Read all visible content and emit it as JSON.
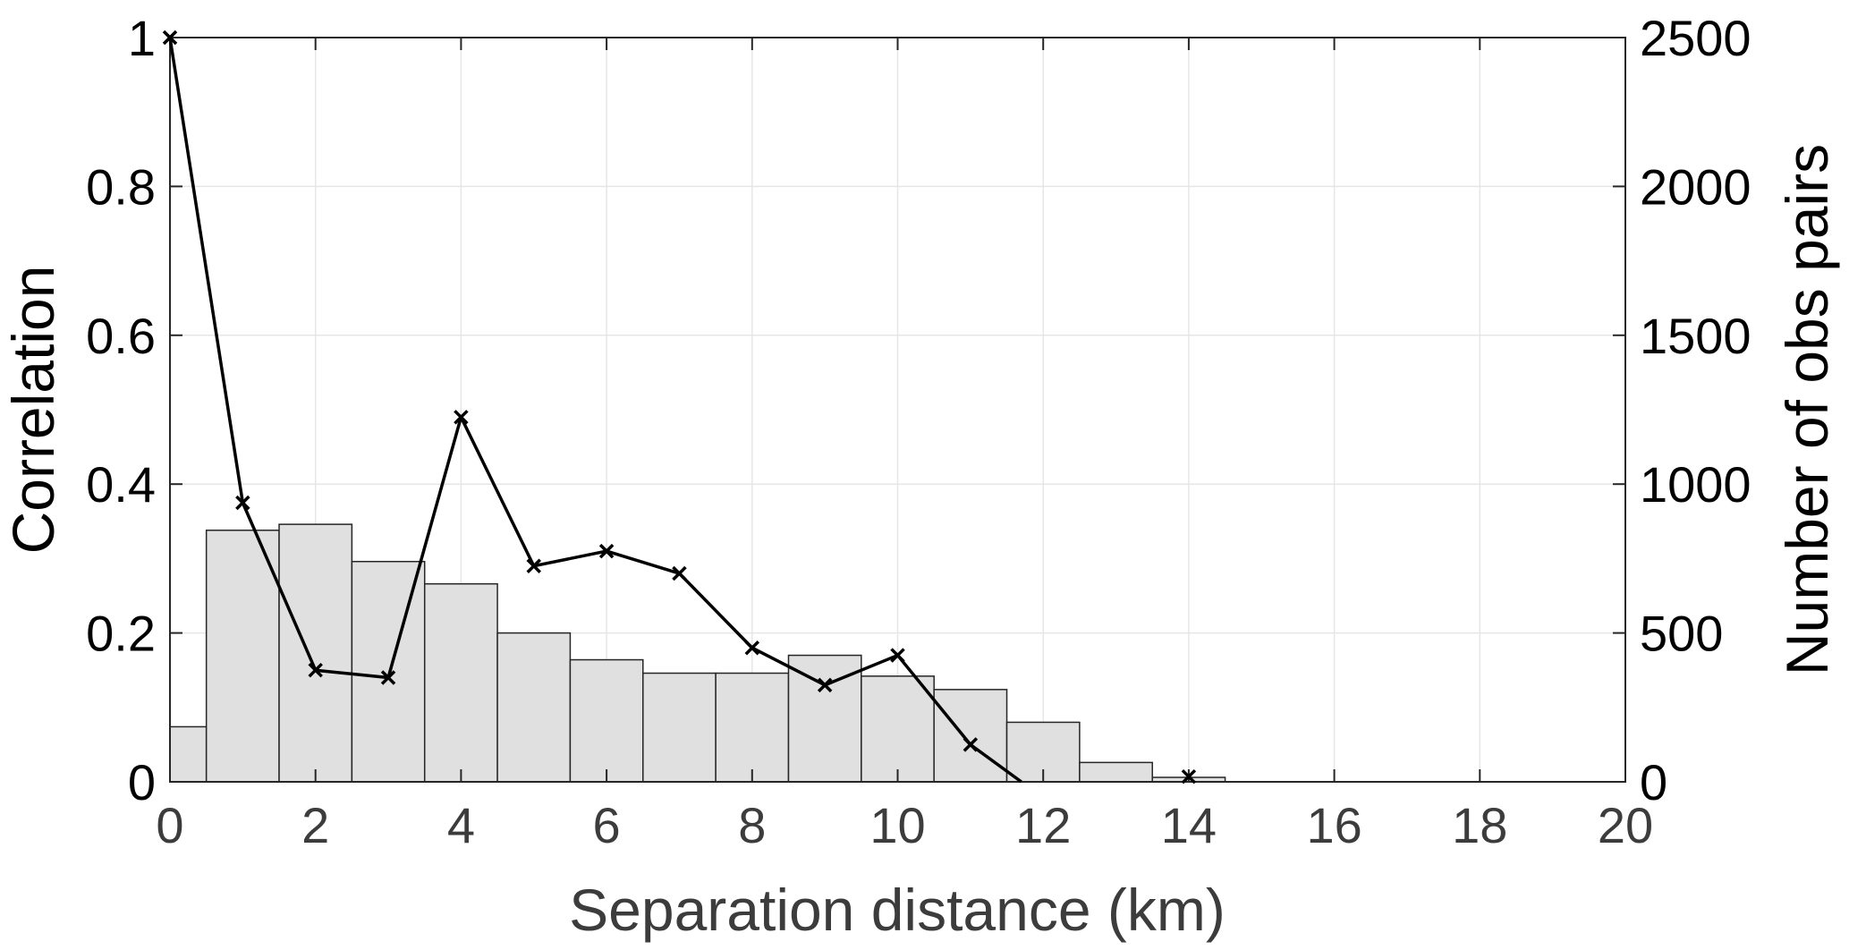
{
  "chart_data": {
    "type": "bar+line",
    "xlabel": "Separation distance (km)",
    "ylabel_left": "Correlation",
    "ylabel_right": "Number of obs pairs",
    "xlim": [
      0,
      20
    ],
    "ylim_left": [
      0,
      1
    ],
    "ylim_right": [
      0,
      2500
    ],
    "x_ticks": [
      0,
      2,
      4,
      6,
      8,
      10,
      12,
      14,
      16,
      18,
      20
    ],
    "y_ticks_left": [
      0,
      0.2,
      0.4,
      0.6,
      0.8,
      1
    ],
    "y_ticks_right": [
      0,
      500,
      1000,
      1500,
      2000,
      2500
    ],
    "grid": true,
    "histogram": {
      "axis": "right",
      "bin_edges": [
        0,
        0.5,
        1.5,
        2.5,
        3.5,
        4.5,
        5.5,
        6.5,
        7.5,
        8.5,
        9.5,
        10.5,
        11.5,
        12.5,
        13.5,
        14.5
      ],
      "counts": [
        185,
        845,
        865,
        740,
        665,
        500,
        410,
        365,
        365,
        425,
        355,
        310,
        200,
        65,
        15
      ]
    },
    "series": [
      {
        "axis": "left",
        "marker": "x",
        "x": [
          0,
          1,
          2,
          3,
          4,
          5,
          6,
          7,
          8,
          9,
          10,
          11,
          11.7
        ],
        "y": [
          1.0,
          0.375,
          0.15,
          0.14,
          0.49,
          0.29,
          0.31,
          0.28,
          0.18,
          0.13,
          0.17,
          0.05,
          0.0
        ],
        "marker_x": [
          0,
          1,
          2,
          3,
          4,
          5,
          6,
          7,
          8,
          9,
          10,
          11,
          14
        ],
        "marker_y": [
          1.0,
          0.375,
          0.15,
          0.14,
          0.49,
          0.29,
          0.31,
          0.28,
          0.18,
          0.13,
          0.17,
          0.05,
          0.007
        ]
      }
    ]
  }
}
